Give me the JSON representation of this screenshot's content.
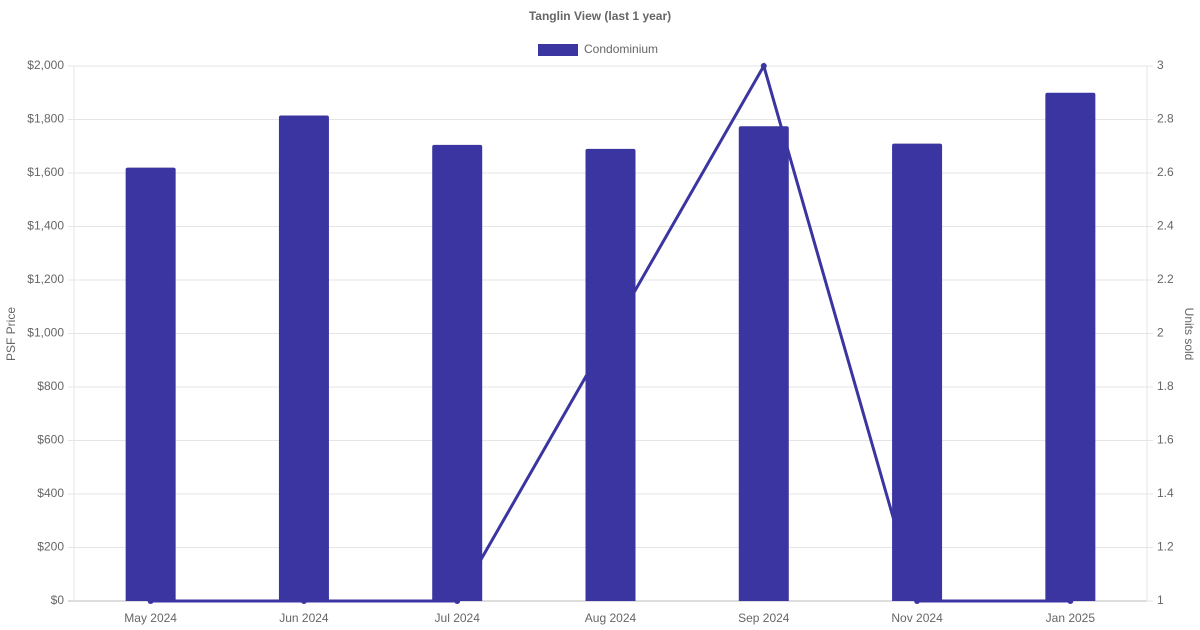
{
  "chart_data": {
    "type": "bar",
    "title": "Tanglin View (last 1 year)",
    "categories": [
      "May 2024",
      "Jun 2024",
      "Jul 2024",
      "Aug 2024",
      "Sep 2024",
      "Nov 2024",
      "Jan 2025"
    ],
    "series": [
      {
        "name": "Condominium",
        "color": "#3a35a0",
        "values": [
          1620,
          1815,
          1705,
          1690,
          1775,
          1710,
          1900
        ]
      },
      {
        "type": "line",
        "axis": "y2",
        "color": "#3a35a0",
        "values": [
          1,
          1,
          1,
          2,
          3,
          1,
          1
        ]
      }
    ],
    "ylabel": "PSF Price",
    "y2label": "Units sold",
    "ylim": [
      0,
      2000
    ],
    "yticks": [
      {
        "value": 0,
        "label": "$0"
      },
      {
        "value": 200,
        "label": "$200"
      },
      {
        "value": 400,
        "label": "$400"
      },
      {
        "value": 600,
        "label": "$600"
      },
      {
        "value": 800,
        "label": "$800"
      },
      {
        "value": 1000,
        "label": "$1,000"
      },
      {
        "value": 1200,
        "label": "$1,200"
      },
      {
        "value": 1400,
        "label": "$1,400"
      },
      {
        "value": 1600,
        "label": "$1,600"
      },
      {
        "value": 1800,
        "label": "$1,800"
      },
      {
        "value": 2000,
        "label": "$2,000"
      }
    ],
    "y2lim": [
      1,
      3
    ],
    "y2ticks": [
      1,
      1.2,
      1.4,
      1.6,
      1.8,
      2,
      2.2,
      2.4,
      2.6,
      2.8,
      3
    ],
    "grid": true,
    "legend": "top"
  }
}
